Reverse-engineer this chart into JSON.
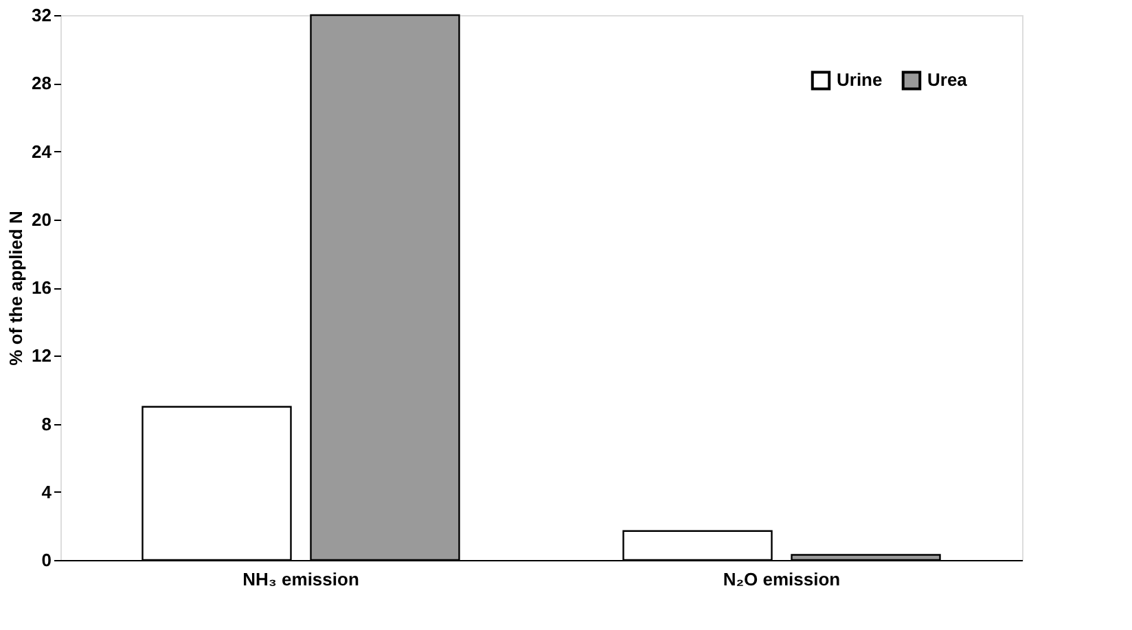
{
  "chart_data": {
    "type": "bar",
    "ylabel": "% of the applied N",
    "categories": [
      "NH₃ emission",
      "N₂O emission"
    ],
    "series": [
      {
        "name": "Urine",
        "color": "#ffffff",
        "values": [
          9,
          1.7
        ]
      },
      {
        "name": "Urea",
        "color": "#9a9a9a",
        "values": [
          32,
          0.3
        ]
      }
    ],
    "ylim": [
      0,
      32
    ],
    "yticks": [
      0,
      4,
      8,
      12,
      16,
      20,
      24,
      28,
      32
    ],
    "grid": false,
    "legend": "top right"
  }
}
